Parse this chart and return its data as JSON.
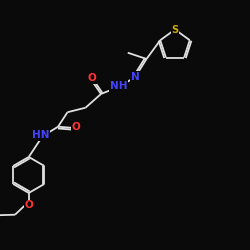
{
  "background_color": "#0a0a0a",
  "bond_color": "#e0e0e0",
  "N_color": "#4444ff",
  "O_color": "#ff3333",
  "S_color": "#ccaa00",
  "lw": 1.3,
  "figsize": [
    2.5,
    2.5
  ],
  "dpi": 100,
  "xlim": [
    0,
    10
  ],
  "ylim": [
    0,
    10
  ]
}
